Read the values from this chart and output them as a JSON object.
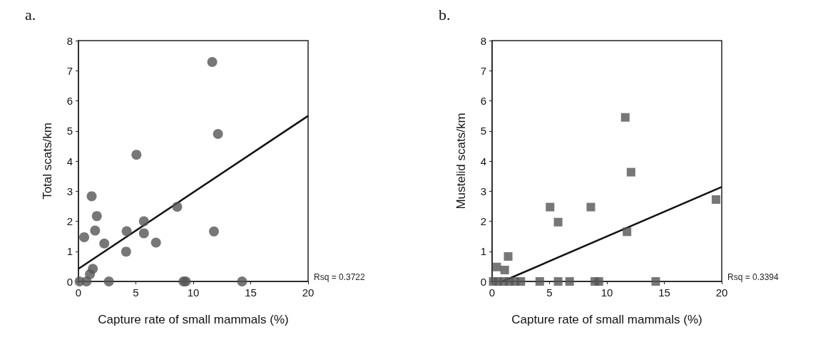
{
  "chart_data": [
    {
      "type": "scatter",
      "title": "a.",
      "xlabel": "Capture rate of small mammals (%)",
      "ylabel": "Total scats/km",
      "annotations": [
        "Rsq = 0.3722"
      ],
      "xlim": [
        0,
        20
      ],
      "ylim": [
        0,
        8
      ],
      "xticks": [
        0,
        5,
        10,
        15,
        20
      ],
      "yticks": [
        0,
        1,
        2,
        3,
        4,
        5,
        6,
        7,
        8
      ],
      "grid": false,
      "series": [
        {
          "marker": "circle",
          "color": "#555555",
          "x": [
            0.1,
            0.7,
            0.5,
            1.15,
            1.25,
            1.0,
            1.45,
            1.6,
            2.25,
            2.65,
            4.15,
            4.2,
            5.05,
            5.7,
            5.7,
            6.75,
            8.6,
            9.15,
            9.35,
            11.65,
            11.8,
            12.15,
            14.25
          ],
          "values": [
            0,
            0,
            1.47,
            2.83,
            0.42,
            0.24,
            1.69,
            2.17,
            1.26,
            0,
            0.99,
            1.67,
            4.21,
            2.0,
            1.6,
            1.29,
            2.48,
            0,
            0,
            7.29,
            1.66,
            4.9,
            0
          ]
        },
        {
          "type": "line",
          "marker": "none",
          "color": "#111111",
          "x": [
            0,
            20
          ],
          "values": [
            0.42,
            5.5
          ]
        }
      ]
    },
    {
      "type": "scatter",
      "title": "b.",
      "xlabel": "Capture rate of small mammals (%)",
      "ylabel": "Mustelid scats/km",
      "annotations": [
        "Rsq = 0.3394"
      ],
      "xlim": [
        0,
        20
      ],
      "ylim": [
        0,
        8
      ],
      "xticks": [
        0,
        5,
        10,
        15,
        20
      ],
      "yticks": [
        0,
        1,
        2,
        3,
        4,
        5,
        6,
        7,
        8
      ],
      "grid": false,
      "series": [
        {
          "marker": "square",
          "color": "#555555",
          "x": [
            0.1,
            0.5,
            1,
            1.5,
            2,
            2.5,
            4.15,
            5.75,
            6.75,
            8.95,
            9.3,
            14.25,
            0.4,
            1.1,
            1.4,
            5.05,
            5.75,
            8.6,
            11.6,
            11.75,
            12.1,
            19.5
          ],
          "values": [
            0,
            0,
            0,
            0,
            0,
            0,
            0,
            0,
            0,
            0,
            0,
            0,
            0.48,
            0.38,
            0.83,
            2.47,
            1.97,
            2.47,
            5.45,
            1.65,
            3.63,
            2.72
          ]
        },
        {
          "type": "line",
          "marker": "none",
          "color": "#111111",
          "x": [
            0.9,
            20
          ],
          "values": [
            0,
            3.14
          ]
        }
      ]
    }
  ]
}
